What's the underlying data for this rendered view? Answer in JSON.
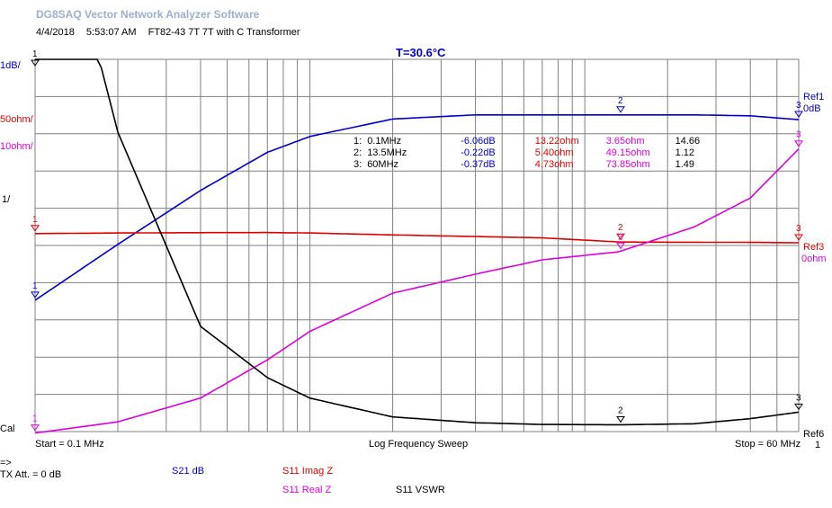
{
  "app_title": "DG8SAQ Vector Network Analyzer Software",
  "header": {
    "date": "4/4/2018",
    "time": "5:53:07 AM",
    "description": "FT82-43 7T 7T with C Transformer"
  },
  "temperature": "T=30.6°C",
  "left_scale": {
    "s21": "1dB/",
    "imag_z": "50ohm/",
    "real_z": "10ohm/",
    "vswr": "1/",
    "cal": "Cal"
  },
  "right_refs": {
    "ref1": "Ref1",
    "ref1_value": "0dB",
    "ref3": "Ref3",
    "ref3_value": "0ohm",
    "ref6": "Ref6",
    "ref6_value": "1"
  },
  "bottom": {
    "start": "Start = 0.1 MHz",
    "sweep": "Log Frequency Sweep",
    "stop": "Stop = 60 MHz"
  },
  "footer": {
    "arrow": "=>",
    "tx_att": "TX Att.  = 0 dB",
    "trace_s21": "S21  dB",
    "trace_imag": "S11  Imag Z",
    "trace_real": "S11  Real Z",
    "trace_vswr": "S11  VSWR"
  },
  "markers": [
    {
      "id": "1:",
      "freq": "0.1MHz",
      "s21": "-6.06dB",
      "imag": "13.22ohm",
      "real": "3.65ohm",
      "vswr": "14.66"
    },
    {
      "id": "2:",
      "freq": "13.5MHz",
      "s21": "-0.22dB",
      "imag": "5.40ohm",
      "real": "49.15ohm",
      "vswr": "1.12"
    },
    {
      "id": "3:",
      "freq": "60MHz",
      "s21": "-0.37dB",
      "imag": "4.73ohm",
      "real": "73.85ohm",
      "vswr": "1.49"
    }
  ],
  "marker_labels": {
    "m1": "1",
    "m2": "2",
    "m3": "3"
  },
  "colors": {
    "s21": "#0000cc",
    "imag": "#dd0000",
    "real": "#dd00dd",
    "vswr": "#000000",
    "grid": "#808080"
  },
  "chart_data": {
    "type": "line",
    "x_scale": "log",
    "x_range_mhz": [
      0.1,
      60
    ],
    "series": [
      {
        "name": "S21  dB",
        "x": [
          0.1,
          0.2,
          0.4,
          0.7,
          1,
          2,
          4,
          7,
          13.5,
          25,
          40,
          60
        ],
        "values": [
          -6.06,
          -4.3,
          -2.6,
          -1.4,
          -0.9,
          -0.35,
          -0.22,
          -0.22,
          -0.22,
          -0.22,
          -0.25,
          -0.37
        ]
      },
      {
        "name": "S11  Imag Z",
        "x": [
          0.1,
          0.2,
          0.4,
          0.7,
          1,
          2,
          4,
          7,
          13.5,
          25,
          40,
          60
        ],
        "values": [
          13.22,
          13.8,
          14.1,
          14.2,
          13.8,
          12.0,
          10.5,
          9.3,
          5.4,
          5.2,
          5.1,
          4.73
        ]
      },
      {
        "name": "S11  Real Z",
        "x": [
          0.1,
          0.2,
          0.4,
          0.7,
          1,
          2,
          4,
          7,
          13.5,
          25,
          40,
          60
        ],
        "values": [
          3.65,
          6,
          11,
          19,
          25,
          33,
          37,
          40,
          49.15,
          55,
          62,
          73.85
        ]
      },
      {
        "name": "S11  VSWR",
        "x": [
          0.1,
          0.2,
          0.4,
          0.7,
          1,
          2,
          4,
          7,
          13.5,
          25,
          40,
          60
        ],
        "values": [
          14.66,
          8,
          4,
          2.5,
          1.9,
          1.35,
          1.18,
          1.13,
          1.12,
          1.15,
          1.3,
          1.49
        ]
      }
    ]
  }
}
